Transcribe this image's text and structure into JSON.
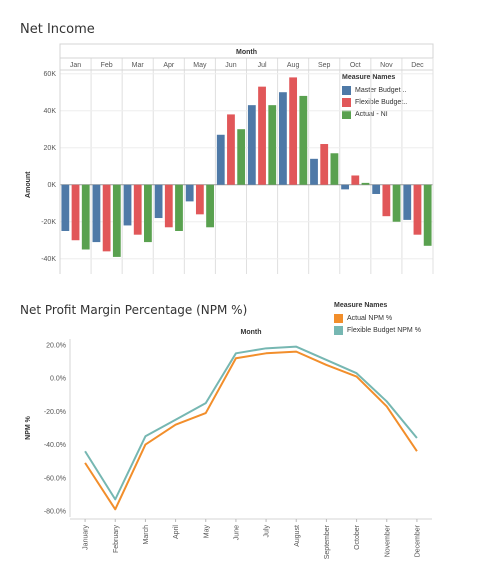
{
  "chart_data": [
    {
      "type": "bar",
      "title": "Net Income",
      "xlabel": "Month",
      "ylabel": "Amount",
      "categories": [
        "Jan",
        "Feb",
        "Mar",
        "Apr",
        "May",
        "Jun",
        "Jul",
        "Aug",
        "Sep",
        "Oct",
        "Nov",
        "Dec"
      ],
      "ylim": [
        -45000,
        62000
      ],
      "yticks": [
        -40000,
        -20000,
        0,
        20000,
        40000,
        60000
      ],
      "ytick_labels": [
        "-40K",
        "-20K",
        "0K",
        "20K",
        "40K",
        "60K"
      ],
      "legend_title": "Measure Names",
      "legend_position": "right",
      "grid": true,
      "series": [
        {
          "name": "Master Budget ..",
          "color": "#4e79a7",
          "values": [
            -25000,
            -31000,
            -22000,
            -18000,
            -9000,
            27000,
            43000,
            50000,
            14000,
            -2500,
            -5000,
            -19000
          ]
        },
        {
          "name": "Flexible Budget..",
          "color": "#e15759",
          "values": [
            -30000,
            -36000,
            -27000,
            -23000,
            -16000,
            38000,
            53000,
            58000,
            22000,
            5000,
            -17000,
            -27000
          ]
        },
        {
          "name": "Actual - NI",
          "color": "#59a14f",
          "values": [
            -35000,
            -39000,
            -31000,
            -25000,
            -23000,
            30000,
            43000,
            48000,
            17000,
            1000,
            -20000,
            -33000
          ]
        }
      ]
    },
    {
      "type": "line",
      "title": "Net Profit Margin Percentage (NPM %)",
      "xlabel": "Month",
      "ylabel": "NPM %",
      "categories": [
        "January",
        "February",
        "March",
        "April",
        "May",
        "June",
        "July",
        "August",
        "September",
        "October",
        "November",
        "December"
      ],
      "ylim": [
        -82,
        24
      ],
      "yticks": [
        -80,
        -60,
        -40,
        -20,
        0,
        20
      ],
      "ytick_labels": [
        "-80.0%",
        "-60.0%",
        "-40.0%",
        "-20.0%",
        "0.0%",
        "20.0%"
      ],
      "legend_title": "Measure Names",
      "legend_position": "top-right",
      "grid": false,
      "series": [
        {
          "name": "Actual NPM %",
          "color": "#f28e2b",
          "values": [
            -51,
            -79,
            -40,
            -28,
            -21,
            12,
            15,
            16,
            8,
            1,
            -17,
            -44
          ]
        },
        {
          "name": "Flexible Budget NPM %",
          "color": "#76b7b2",
          "values": [
            -44,
            -73,
            -35,
            -25,
            -15,
            15,
            18,
            19,
            11,
            3,
            -14,
            -36
          ]
        }
      ]
    }
  ]
}
